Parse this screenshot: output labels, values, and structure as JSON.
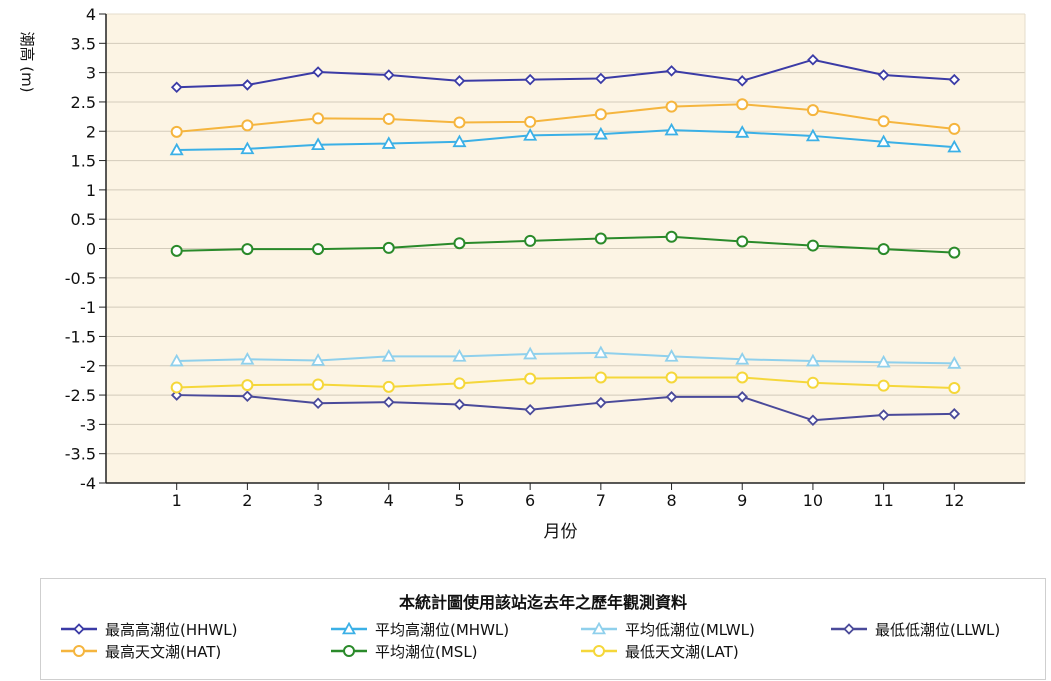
{
  "chart_data": {
    "type": "line",
    "title": "",
    "xlabel": "月份",
    "ylabel": "潮高 (m)",
    "ylim": [
      -4,
      4
    ],
    "xlim": [
      0,
      13
    ],
    "x": [
      1,
      2,
      3,
      4,
      5,
      6,
      7,
      8,
      9,
      10,
      11,
      12
    ],
    "yticks": [
      "4",
      "3.5",
      "3",
      "2.5",
      "2",
      "1.5",
      "1",
      "0.5",
      "0",
      "-0.5",
      "-1",
      "-1.5",
      "-2",
      "-2.5",
      "-3",
      "-3.5",
      "-4"
    ],
    "xticks": [
      "1",
      "2",
      "3",
      "4",
      "5",
      "6",
      "7",
      "8",
      "9",
      "10",
      "11",
      "12"
    ],
    "grid": "horizontal",
    "plot_background": "#fcf4e4",
    "legend_title": "本統計圖使用該站迄去年之歷年觀測資料",
    "legend_placement": "bottom",
    "series": [
      {
        "name": "最高高潮位(HHWL)",
        "color": "#3b3ba6",
        "marker": "diamond",
        "values": [
          2.75,
          2.79,
          3.01,
          2.96,
          2.86,
          2.88,
          2.9,
          3.03,
          2.86,
          3.22,
          2.96,
          2.88
        ]
      },
      {
        "name": "平均高潮位(MHWL)",
        "color": "#3bb0e6",
        "marker": "triangle",
        "values": [
          1.68,
          1.7,
          1.77,
          1.79,
          1.82,
          1.93,
          1.95,
          2.02,
          1.98,
          1.92,
          1.82,
          1.73
        ]
      },
      {
        "name": "平均低潮位(MLWL)",
        "color": "#8fd0ec",
        "marker": "triangle",
        "values": [
          -1.92,
          -1.89,
          -1.91,
          -1.84,
          -1.84,
          -1.8,
          -1.78,
          -1.84,
          -1.89,
          -1.92,
          -1.94,
          -1.96
        ]
      },
      {
        "name": "最低低潮位(LLWL)",
        "color": "#4a4a9a",
        "marker": "diamond",
        "values": [
          -2.5,
          -2.52,
          -2.64,
          -2.62,
          -2.66,
          -2.75,
          -2.63,
          -2.53,
          -2.53,
          -2.93,
          -2.84,
          -2.82
        ]
      },
      {
        "name": "最高天文潮(HAT)",
        "color": "#f5b53e",
        "marker": "circle",
        "values": [
          1.99,
          2.1,
          2.22,
          2.21,
          2.15,
          2.16,
          2.29,
          2.42,
          2.46,
          2.36,
          2.17,
          2.04
        ]
      },
      {
        "name": "平均潮位(MSL)",
        "color": "#2a8a2a",
        "marker": "circle",
        "values": [
          -0.04,
          -0.01,
          -0.01,
          0.01,
          0.09,
          0.13,
          0.17,
          0.2,
          0.12,
          0.05,
          -0.01,
          -0.07
        ]
      },
      {
        "name": "最低天文潮(LAT)",
        "color": "#f5d73a",
        "marker": "circle",
        "values": [
          -2.37,
          -2.33,
          -2.32,
          -2.36,
          -2.3,
          -2.22,
          -2.2,
          -2.2,
          -2.2,
          -2.29,
          -2.34,
          -2.38
        ]
      }
    ]
  }
}
